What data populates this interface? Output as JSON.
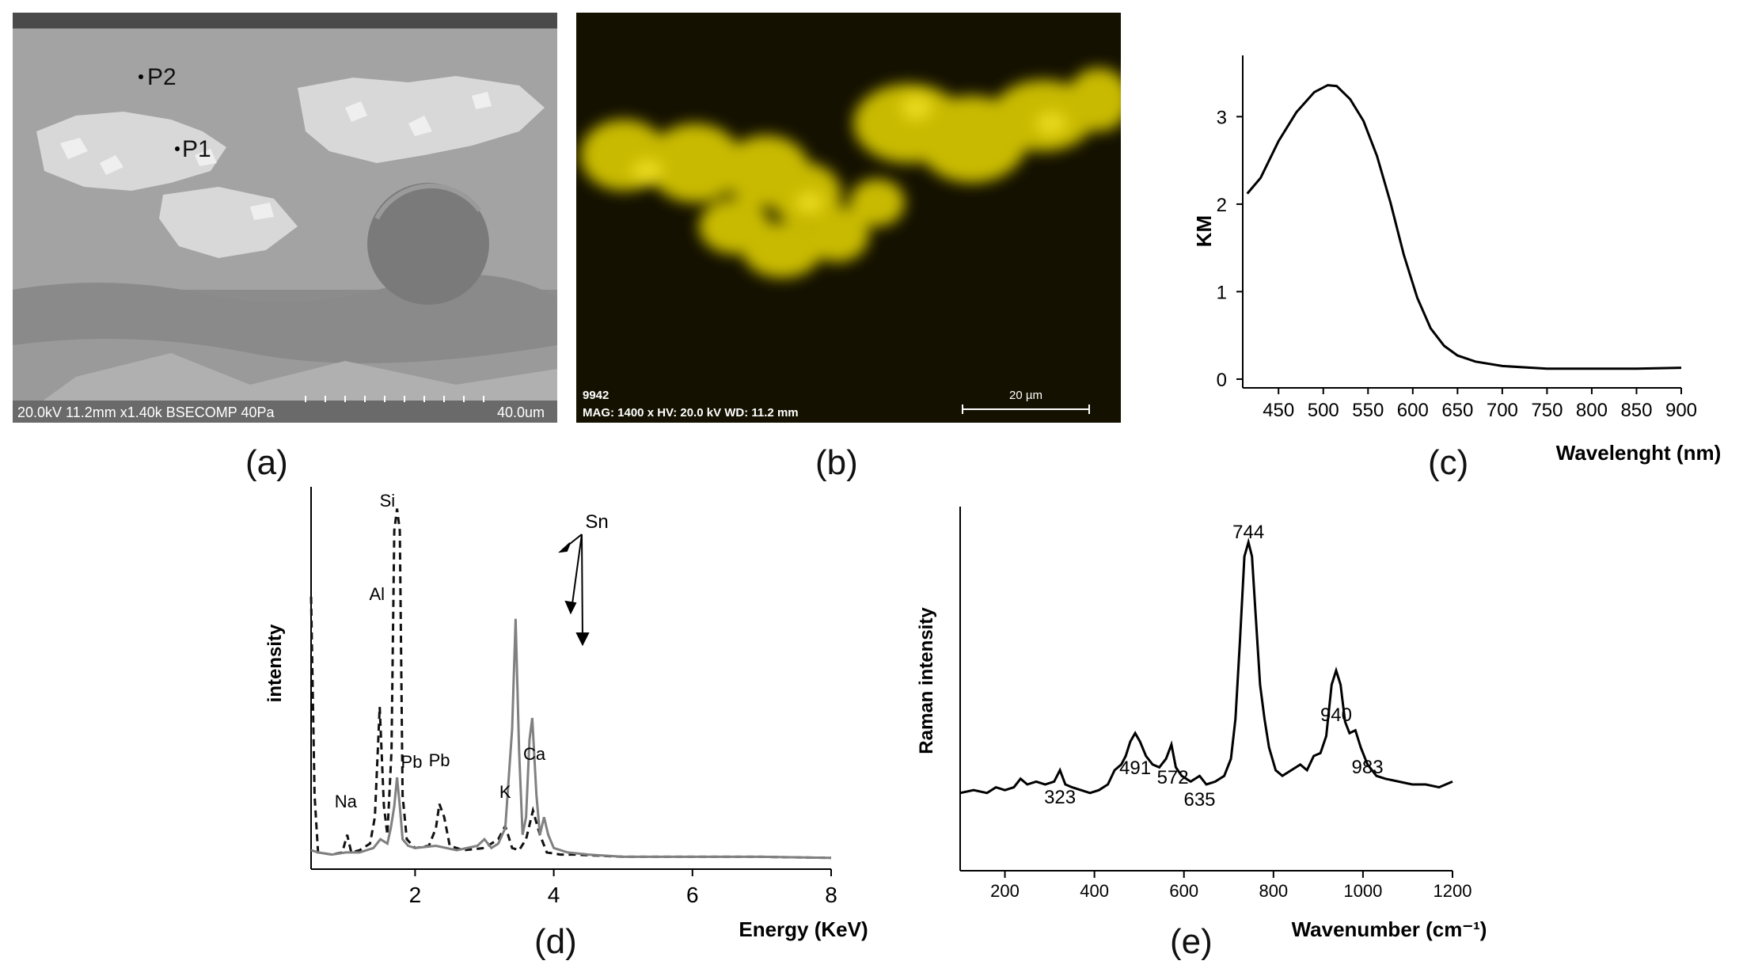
{
  "panels": {
    "a": {
      "label": "(a)",
      "points": [
        "P1",
        "P2"
      ],
      "info_bar": "20.0kV 11.2mm x1.40k BSECOMP 40Pa",
      "scale_text": "40.0um"
    },
    "b": {
      "label": "(b)",
      "sample_id": "9942",
      "info_bar": "MAG: 1400 x  HV: 20.0 kV  WD: 11.2 mm",
      "scale_text": "20 µm",
      "map_color": "#e8d800"
    },
    "c": {
      "label": "(c)"
    },
    "d": {
      "label": "(d)",
      "arrow_label": "Sn"
    },
    "e": {
      "label": "(e)"
    }
  },
  "chart_data": [
    {
      "panel": "c",
      "type": "line",
      "ylabel": "KM",
      "xlabel": "Wavelenght (nm)",
      "xlim": [
        410,
        900
      ],
      "ylim": [
        -0.1,
        3.7
      ],
      "xticks": [
        450,
        500,
        550,
        600,
        650,
        700,
        750,
        800,
        850,
        900
      ],
      "yticks": [
        0,
        1,
        2,
        3
      ],
      "series": [
        {
          "color": "#000000",
          "x": [
            415,
            430,
            450,
            470,
            490,
            505,
            515,
            530,
            545,
            560,
            575,
            590,
            605,
            620,
            635,
            650,
            670,
            700,
            750,
            800,
            850,
            900
          ],
          "y": [
            2.12,
            2.3,
            2.72,
            3.05,
            3.28,
            3.36,
            3.35,
            3.2,
            2.95,
            2.55,
            2.02,
            1.42,
            0.93,
            0.58,
            0.38,
            0.27,
            0.2,
            0.15,
            0.12,
            0.12,
            0.12,
            0.13
          ]
        }
      ]
    },
    {
      "panel": "d",
      "type": "line",
      "ylabel": "intensity",
      "xlabel": "Energy (KeV)",
      "xlim": [
        0.5,
        8
      ],
      "xticks": [
        2,
        4,
        6,
        8
      ],
      "annotations": [
        {
          "text": "Na",
          "x": 1.04
        },
        {
          "text": "Al",
          "x": 1.49
        },
        {
          "text": "Si",
          "x": 1.74
        },
        {
          "text": "Pb",
          "x": 1.84
        },
        {
          "text": "Pb",
          "x": 2.35
        },
        {
          "text": "K",
          "x": 3.31
        },
        {
          "text": "Ca",
          "x": 3.69
        }
      ],
      "series": [
        {
          "style": "dashed",
          "color": "#111111",
          "x": [
            0.5,
            0.55,
            0.6,
            0.8,
            0.95,
            1.02,
            1.08,
            1.2,
            1.35,
            1.42,
            1.49,
            1.55,
            1.6,
            1.66,
            1.7,
            1.74,
            1.78,
            1.82,
            1.88,
            2.0,
            2.2,
            2.3,
            2.35,
            2.42,
            2.5,
            2.7,
            3.0,
            3.2,
            3.3,
            3.4,
            3.5,
            3.6,
            3.7,
            3.8,
            3.9,
            4.1,
            4.3,
            5.0,
            6.0,
            7.0,
            8.0
          ],
          "y": [
            1.2,
            0.3,
            0.04,
            0.03,
            0.04,
            0.12,
            0.04,
            0.05,
            0.08,
            0.2,
            0.7,
            0.25,
            0.12,
            0.5,
            1.5,
            1.6,
            1.5,
            0.3,
            0.1,
            0.06,
            0.07,
            0.15,
            0.26,
            0.2,
            0.07,
            0.05,
            0.06,
            0.1,
            0.16,
            0.06,
            0.05,
            0.1,
            0.23,
            0.12,
            0.04,
            0.03,
            0.03,
            0.02,
            0.02,
            0.02,
            0.015
          ]
        },
        {
          "style": "solid",
          "color": "#808080",
          "x": [
            0.5,
            0.6,
            0.8,
            1.0,
            1.2,
            1.4,
            1.5,
            1.6,
            1.65,
            1.7,
            1.74,
            1.78,
            1.82,
            1.9,
            2.0,
            2.3,
            2.6,
            2.9,
            3.0,
            3.1,
            3.2,
            3.3,
            3.4,
            3.45,
            3.5,
            3.55,
            3.6,
            3.65,
            3.69,
            3.75,
            3.8,
            3.86,
            3.92,
            4.0,
            4.2,
            4.5,
            5.0,
            6.0,
            7.0,
            8.0
          ],
          "y": [
            0.05,
            0.04,
            0.03,
            0.04,
            0.04,
            0.06,
            0.1,
            0.08,
            0.15,
            0.25,
            0.38,
            0.25,
            0.1,
            0.07,
            0.06,
            0.07,
            0.05,
            0.07,
            0.1,
            0.06,
            0.08,
            0.15,
            0.6,
            1.1,
            0.5,
            0.12,
            0.2,
            0.55,
            0.65,
            0.3,
            0.12,
            0.2,
            0.12,
            0.06,
            0.04,
            0.03,
            0.02,
            0.02,
            0.02,
            0.015
          ]
        }
      ]
    },
    {
      "panel": "e",
      "type": "line",
      "ylabel": "Raman intensity",
      "xlabel": "Wavenumber (cm⁻¹)",
      "xlim": [
        100,
        1200
      ],
      "xticks": [
        200,
        400,
        600,
        800,
        1000,
        1200
      ],
      "peak_labels": [
        {
          "text": "323",
          "x": 323
        },
        {
          "text": "491",
          "x": 491
        },
        {
          "text": "572",
          "x": 572
        },
        {
          "text": "635",
          "x": 635
        },
        {
          "text": "744",
          "x": 744
        },
        {
          "text": "940",
          "x": 940
        },
        {
          "text": "983",
          "x": 983
        }
      ],
      "series": [
        {
          "color": "#000000",
          "x": [
            100,
            130,
            160,
            180,
            200,
            220,
            235,
            250,
            270,
            290,
            310,
            323,
            335,
            350,
            370,
            390,
            410,
            430,
            445,
            460,
            470,
            480,
            491,
            502,
            515,
            530,
            545,
            560,
            572,
            582,
            595,
            615,
            635,
            650,
            670,
            690,
            705,
            715,
            725,
            735,
            744,
            752,
            760,
            770,
            780,
            790,
            805,
            820,
            840,
            860,
            875,
            890,
            905,
            918,
            930,
            940,
            950,
            960,
            970,
            983,
            995,
            1010,
            1030,
            1050,
            1080,
            1110,
            1140,
            1170,
            1200
          ],
          "y": [
            0.12,
            0.13,
            0.12,
            0.14,
            0.13,
            0.14,
            0.17,
            0.15,
            0.16,
            0.15,
            0.16,
            0.2,
            0.15,
            0.14,
            0.13,
            0.12,
            0.13,
            0.15,
            0.2,
            0.22,
            0.25,
            0.3,
            0.33,
            0.3,
            0.25,
            0.22,
            0.21,
            0.24,
            0.29,
            0.21,
            0.18,
            0.16,
            0.18,
            0.15,
            0.16,
            0.18,
            0.24,
            0.38,
            0.65,
            0.95,
            1.0,
            0.95,
            0.75,
            0.5,
            0.38,
            0.28,
            0.2,
            0.18,
            0.2,
            0.22,
            0.2,
            0.25,
            0.26,
            0.32,
            0.5,
            0.55,
            0.5,
            0.37,
            0.33,
            0.34,
            0.28,
            0.22,
            0.18,
            0.17,
            0.16,
            0.15,
            0.15,
            0.14,
            0.16
          ]
        }
      ]
    }
  ]
}
